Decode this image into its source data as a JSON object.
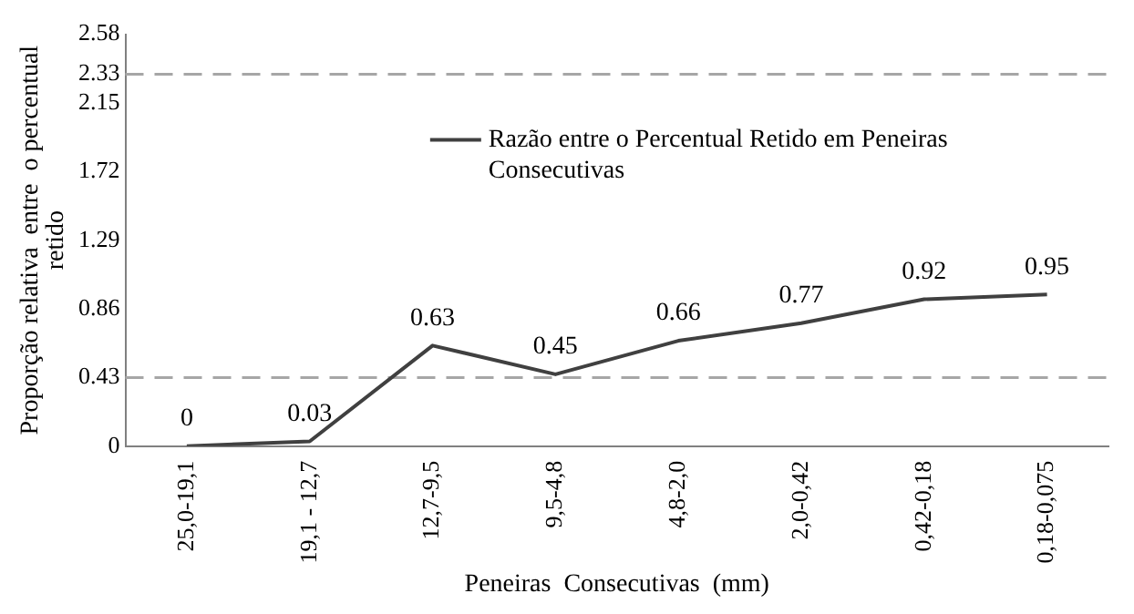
{
  "chart_data": {
    "type": "line",
    "xlabel": "Peneiras  Consecutivas  (mm)",
    "ylabel": "Proporção relativa  entre  o percentual retido",
    "categories": [
      "25,0-19,1",
      "19,1 - 12,7",
      "12,7-9,5",
      "9,5-4,8",
      "4,8-2,0",
      "2,0-0,42",
      "0,42-0,18",
      "0,18-0,075"
    ],
    "series": [
      {
        "name": "Razão entre o Percentual Retido em Peneiras Consecutivas",
        "color": "#404040",
        "values": [
          0,
          0.03,
          0.63,
          0.45,
          0.66,
          0.77,
          0.92,
          0.95
        ]
      }
    ],
    "ylim": [
      0,
      2.58
    ],
    "yticks": [
      0,
      0.43,
      0.86,
      1.29,
      1.72,
      2.15,
      2.33,
      2.58
    ],
    "ref_lines": [
      {
        "axis": "y",
        "value": 2.33,
        "color": "#a6a6a6",
        "line_style": "dashed"
      },
      {
        "axis": "y",
        "value": 0.43,
        "color": "#a6a6a6",
        "line_style": "dashed"
      }
    ],
    "grid": false,
    "legend": "top right",
    "marker": "none",
    "line_style": "solid",
    "data_labels": true
  }
}
